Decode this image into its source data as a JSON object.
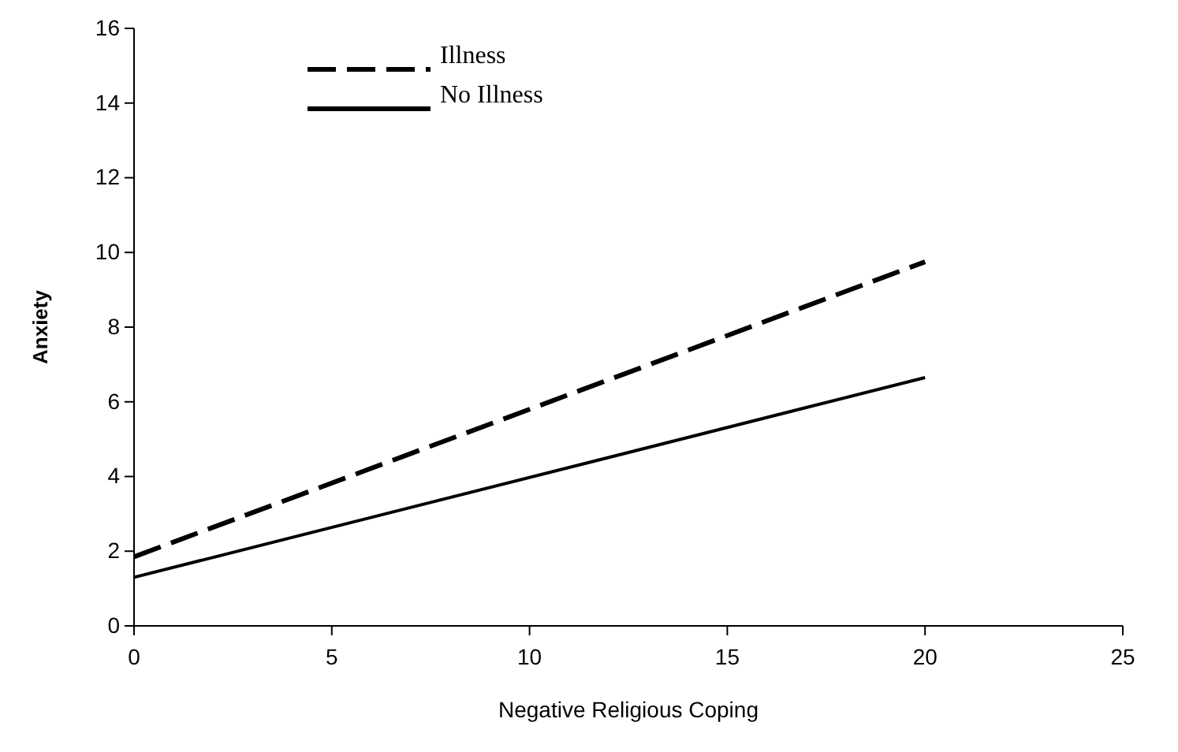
{
  "chart_data": {
    "type": "line",
    "xlabel": "Negative Religious Coping",
    "ylabel": "Anxiety",
    "xlim": [
      0,
      25
    ],
    "xticks": [
      0,
      5,
      10,
      15,
      20,
      25
    ],
    "ylim": [
      0,
      16
    ],
    "yticks": [
      0,
      2,
      4,
      6,
      8,
      10,
      12,
      14,
      16
    ],
    "legend": "top left",
    "marker": "none",
    "x": [
      0,
      20
    ],
    "series": [
      {
        "name": "Illness",
        "color": "#000000",
        "values": [
          1.85,
          9.75
        ],
        "line_style": "dashed"
      },
      {
        "name": "No Illness",
        "color": "#000000",
        "values": [
          1.3,
          6.65
        ],
        "line_style": "solid"
      }
    ]
  }
}
